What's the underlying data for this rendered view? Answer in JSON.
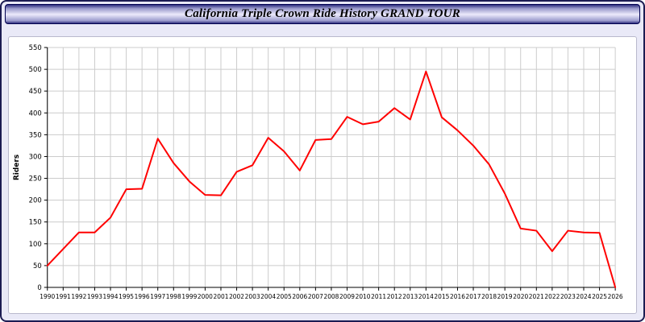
{
  "page": {
    "title": "California Triple Crown Ride History GRAND TOUR"
  },
  "colors": {
    "line": "#ff0000",
    "grid": "#cccccc",
    "axis": "#000000",
    "plot_background": "#ffffff",
    "page_background": "#e9e9f7"
  },
  "chart_data": {
    "type": "line",
    "title": "California Triple Crown Ride History GRAND TOUR",
    "xlabel": "",
    "ylabel": "Riders",
    "ylim": [
      0,
      550
    ],
    "ytick_step": 50,
    "grid": true,
    "legend": "none",
    "line_color": "#ff0000",
    "x": [
      1990,
      1991,
      1992,
      1993,
      1994,
      1995,
      1996,
      1997,
      1998,
      1999,
      2000,
      2001,
      2002,
      2003,
      2004,
      2005,
      2006,
      2007,
      2008,
      2009,
      2010,
      2011,
      2012,
      2013,
      2014,
      2015,
      2016,
      2017,
      2018,
      2019,
      2020,
      2021,
      2022,
      2023,
      2024,
      2025,
      2026
    ],
    "values": [
      50,
      88,
      126,
      126,
      160,
      225,
      226,
      341,
      285,
      243,
      212,
      211,
      265,
      280,
      343,
      312,
      268,
      338,
      340,
      391,
      374,
      380,
      411,
      385,
      495,
      390,
      360,
      325,
      282,
      215,
      135,
      130,
      83,
      130,
      126,
      125,
      0
    ]
  }
}
